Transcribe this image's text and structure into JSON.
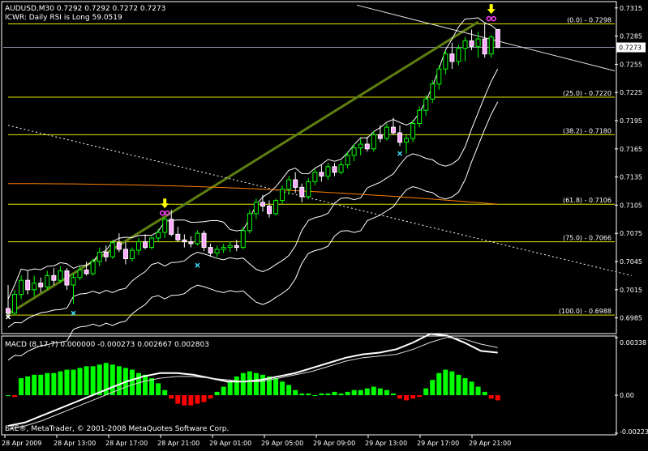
{
  "chart_data": {
    "type": "candlestick",
    "symbol_header": "AUDUSD,M30  0.7292 0.7292 0.7272 0.7273",
    "indicator_label": "ICWR: Daily RSI is Long 59.0519",
    "price_axis": {
      "min": 0.697,
      "max": 0.732,
      "ticks": [
        "0.7315",
        "0.7285",
        "0.7255",
        "0.7225",
        "0.7195",
        "0.7165",
        "0.7135",
        "0.7105",
        "0.7075",
        "0.7045",
        "0.7015",
        "0.6985"
      ]
    },
    "current_price_label": "0.7273",
    "current_price": 0.7273,
    "time_axis": {
      "labels": [
        "28 Apr 2009",
        "28 Apr 13:00",
        "28 Apr 17:00",
        "28 Apr 21:00",
        "29 Apr 01:00",
        "29 Apr 05:00",
        "29 Apr 09:00",
        "29 Apr 13:00",
        "29 Apr 17:00",
        "29 Apr 21:00"
      ]
    },
    "fibonacci_levels": [
      {
        "label": "(0.0) - 0.7298",
        "value": 0.7298
      },
      {
        "label": "(25.0) - 0.7220",
        "value": 0.722
      },
      {
        "label": "(38.2) - 0.7180",
        "value": 0.718
      },
      {
        "label": "(61.8) - 0.7106",
        "value": 0.7106
      },
      {
        "label": "(75.0) - 0.7066",
        "value": 0.7066
      },
      {
        "label": "(100.0) - 0.6988",
        "value": 0.6988
      }
    ],
    "candles": [
      [
        0.6995,
        0.702,
        0.6985,
        0.699
      ],
      [
        0.699,
        0.7015,
        0.6988,
        0.701
      ],
      [
        0.701,
        0.703,
        0.7005,
        0.7025
      ],
      [
        0.7025,
        0.7035,
        0.701,
        0.7015
      ],
      [
        0.7015,
        0.703,
        0.7008,
        0.7022
      ],
      [
        0.7022,
        0.7028,
        0.7012,
        0.7018
      ],
      [
        0.7018,
        0.7035,
        0.7015,
        0.703
      ],
      [
        0.703,
        0.7038,
        0.702,
        0.7025
      ],
      [
        0.7025,
        0.704,
        0.7022,
        0.7035
      ],
      [
        0.7035,
        0.7038,
        0.7015,
        0.702
      ],
      [
        0.702,
        0.7032,
        0.7,
        0.7028
      ],
      [
        0.7028,
        0.704,
        0.7025,
        0.7036
      ],
      [
        0.7036,
        0.7045,
        0.703,
        0.7032
      ],
      [
        0.7032,
        0.7048,
        0.703,
        0.7045
      ],
      [
        0.7045,
        0.706,
        0.704,
        0.7055
      ],
      [
        0.7055,
        0.7062,
        0.7045,
        0.705
      ],
      [
        0.705,
        0.7068,
        0.7048,
        0.7065
      ],
      [
        0.7065,
        0.7075,
        0.7055,
        0.7058
      ],
      [
        0.7058,
        0.7066,
        0.7042,
        0.7048
      ],
      [
        0.7048,
        0.706,
        0.7045,
        0.7057
      ],
      [
        0.7057,
        0.707,
        0.7052,
        0.7066
      ],
      [
        0.7066,
        0.7074,
        0.7058,
        0.706
      ],
      [
        0.706,
        0.7072,
        0.7058,
        0.707
      ],
      [
        0.707,
        0.708,
        0.7066,
        0.7076
      ],
      [
        0.7076,
        0.7092,
        0.707,
        0.709
      ],
      [
        0.709,
        0.71,
        0.7072,
        0.7074
      ],
      [
        0.7074,
        0.7082,
        0.7066,
        0.7068
      ],
      [
        0.7068,
        0.7074,
        0.706,
        0.7066
      ],
      [
        0.7066,
        0.7072,
        0.706,
        0.7064
      ],
      [
        0.7064,
        0.7078,
        0.7062,
        0.7075
      ],
      [
        0.7075,
        0.7078,
        0.7056,
        0.706
      ],
      [
        0.706,
        0.7064,
        0.705,
        0.7054
      ],
      [
        0.7054,
        0.7062,
        0.705,
        0.7058
      ],
      [
        0.7058,
        0.7064,
        0.7054,
        0.706
      ],
      [
        0.706,
        0.7066,
        0.7055,
        0.7062
      ],
      [
        0.7062,
        0.7068,
        0.7056,
        0.706
      ],
      [
        0.706,
        0.7082,
        0.7058,
        0.7078
      ],
      [
        0.7078,
        0.71,
        0.7075,
        0.7096
      ],
      [
        0.7096,
        0.7112,
        0.709,
        0.7108
      ],
      [
        0.7108,
        0.7116,
        0.7098,
        0.7104
      ],
      [
        0.7104,
        0.711,
        0.7092,
        0.7096
      ],
      [
        0.7096,
        0.7112,
        0.7094,
        0.711
      ],
      [
        0.711,
        0.7126,
        0.7106,
        0.7122
      ],
      [
        0.7122,
        0.7136,
        0.7116,
        0.7132
      ],
      [
        0.7132,
        0.714,
        0.7118,
        0.7124
      ],
      [
        0.7124,
        0.7128,
        0.7108,
        0.7114
      ],
      [
        0.7114,
        0.7134,
        0.7112,
        0.713
      ],
      [
        0.713,
        0.7144,
        0.7126,
        0.714
      ],
      [
        0.714,
        0.7148,
        0.713,
        0.7136
      ],
      [
        0.7136,
        0.715,
        0.7132,
        0.7146
      ],
      [
        0.7146,
        0.715,
        0.7136,
        0.714
      ],
      [
        0.714,
        0.7152,
        0.7138,
        0.7148
      ],
      [
        0.7148,
        0.7162,
        0.7144,
        0.7158
      ],
      [
        0.7158,
        0.717,
        0.7152,
        0.7166
      ],
      [
        0.7166,
        0.7176,
        0.7158,
        0.717
      ],
      [
        0.717,
        0.7178,
        0.7162,
        0.7165
      ],
      [
        0.7165,
        0.7184,
        0.7162,
        0.718
      ],
      [
        0.718,
        0.719,
        0.7172,
        0.7176
      ],
      [
        0.7176,
        0.7192,
        0.7174,
        0.7188
      ],
      [
        0.7188,
        0.7198,
        0.718,
        0.7182
      ],
      [
        0.7182,
        0.719,
        0.7168,
        0.7172
      ],
      [
        0.7172,
        0.718,
        0.716,
        0.7176
      ],
      [
        0.7176,
        0.7196,
        0.7172,
        0.7192
      ],
      [
        0.7192,
        0.721,
        0.7188,
        0.7206
      ],
      [
        0.7206,
        0.7222,
        0.72,
        0.7218
      ],
      [
        0.7218,
        0.7238,
        0.7214,
        0.7234
      ],
      [
        0.7234,
        0.7254,
        0.7228,
        0.725
      ],
      [
        0.725,
        0.727,
        0.7244,
        0.7266
      ],
      [
        0.7266,
        0.7278,
        0.725,
        0.7258
      ],
      [
        0.7258,
        0.7276,
        0.7254,
        0.7272
      ],
      [
        0.7272,
        0.7284,
        0.7258,
        0.728
      ],
      [
        0.728,
        0.7292,
        0.727,
        0.7274
      ],
      [
        0.7274,
        0.729,
        0.7262,
        0.7282
      ],
      [
        0.7282,
        0.7298,
        0.7262,
        0.7266
      ],
      [
        0.7266,
        0.7286,
        0.7262,
        0.7284
      ],
      [
        0.7292,
        0.7292,
        0.7272,
        0.7273
      ]
    ],
    "macd": {
      "label": "MACD (8,17,7) 0.000000 -0.000273 0.002667 0.002803",
      "axis_ticks": [
        "0.00338",
        "0.00",
        "-0.00223"
      ],
      "axis_range": [
        -0.00223,
        0.00338
      ],
      "histogram": [
        0.0,
        -0.0001,
        0.001,
        0.0011,
        0.0012,
        0.0012,
        0.0013,
        0.0013,
        0.0014,
        0.0015,
        0.0015,
        0.0016,
        0.0017,
        0.0017,
        0.0018,
        0.0019,
        0.0018,
        0.0017,
        0.0016,
        0.0015,
        0.0013,
        0.0012,
        0.001,
        0.0007,
        0.0003,
        -0.0002,
        -0.0005,
        -0.0006,
        -0.0006,
        -0.0005,
        -0.0004,
        -0.0002,
        0.0002,
        0.0005,
        0.0008,
        0.0011,
        0.0013,
        0.0014,
        0.0013,
        0.0012,
        0.0011,
        0.001,
        0.0008,
        0.0006,
        0.0003,
        0.0001,
        0.0001,
        0.0,
        0.0001,
        0.0001,
        0.0002,
        0.0001,
        0.0002,
        0.0003,
        0.0003,
        0.0004,
        0.0005,
        0.0004,
        0.0003,
        0.0001,
        -0.0002,
        -0.0003,
        -0.0002,
        -0.0001,
        0.0004,
        0.0009,
        0.0013,
        0.0015,
        0.0014,
        0.0012,
        0.001,
        0.0008,
        0.0005,
        0.0002,
        -0.0002,
        -0.0003
      ],
      "main": [
        -0.0018,
        -0.0016,
        -0.0012,
        -0.0008,
        -0.0004,
        0.0,
        0.0004,
        0.0008,
        0.0011,
        0.0013,
        0.0013,
        0.0012,
        0.001,
        0.0008,
        0.0008,
        0.0009,
        0.0011,
        0.0013,
        0.0016,
        0.0019,
        0.0022,
        0.0024,
        0.0025,
        0.0027,
        0.0031,
        0.0036,
        0.0035,
        0.0031,
        0.0026,
        0.0025
      ],
      "signal": [
        -0.002,
        -0.0018,
        -0.0015,
        -0.0011,
        -0.0007,
        -0.0003,
        0.0001,
        0.0005,
        0.0008,
        0.001,
        0.0011,
        0.0011,
        0.001,
        0.0009,
        0.0008,
        0.0008,
        0.001,
        0.0012,
        0.0014,
        0.0017,
        0.002,
        0.0022,
        0.0023,
        0.0024,
        0.0027,
        0.0031,
        0.0034,
        0.0033,
        0.003,
        0.0028
      ]
    },
    "copyright": "EXE®, MetaTrader, © 2001-2008 MetaQuotes Software Corp.",
    "colors": {
      "bull": "#00ff00",
      "bear": "#ffffff",
      "bear_fill": "#ffa8ff",
      "fib": "#e6e600",
      "trend": "#5e7f10",
      "bands": "#ffffff",
      "ma": "#ff8000",
      "macd_up": "#00ff00",
      "macd_down": "#ff0000"
    }
  }
}
